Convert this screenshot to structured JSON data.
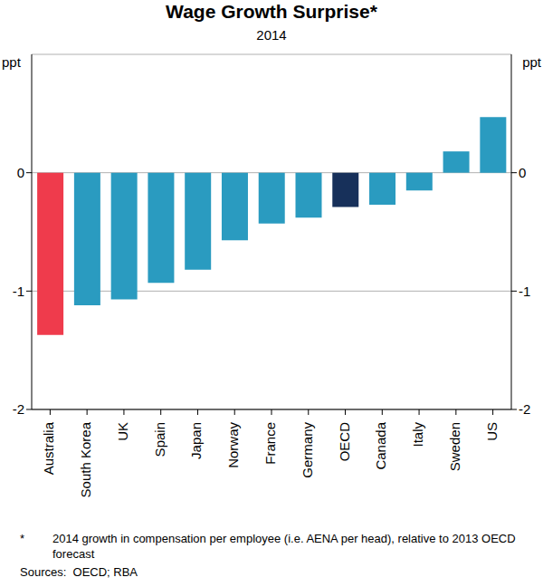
{
  "chart_data": {
    "type": "bar",
    "title": "Wage Growth Surprise*",
    "subtitle": "2014",
    "y_label": "ppt",
    "categories": [
      "Australia",
      "South Korea",
      "UK",
      "Spain",
      "Japan",
      "Norway",
      "France",
      "Germany",
      "OECD",
      "Canada",
      "Italy",
      "Sweden",
      "US"
    ],
    "values": [
      -1.37,
      -1.12,
      -1.07,
      -0.93,
      -0.82,
      -0.57,
      -0.43,
      -0.38,
      -0.29,
      -0.27,
      -0.15,
      0.18,
      0.47
    ],
    "colors": [
      "#ef3b4c",
      "#2a9bc0",
      "#2a9bc0",
      "#2a9bc0",
      "#2a9bc0",
      "#2a9bc0",
      "#2a9bc0",
      "#2a9bc0",
      "#17305a",
      "#2a9bc0",
      "#2a9bc0",
      "#2a9bc0",
      "#2a9bc0"
    ],
    "ylim": [
      -2,
      1
    ],
    "yticks": [
      -2,
      -1,
      0
    ],
    "grid": true,
    "notes": [
      "*",
      "2014 growth in compensation per employee (i.e. AENA per head), relative to 2013 OECD forecast"
    ],
    "sources": "Sources:  OECD; RBA"
  }
}
